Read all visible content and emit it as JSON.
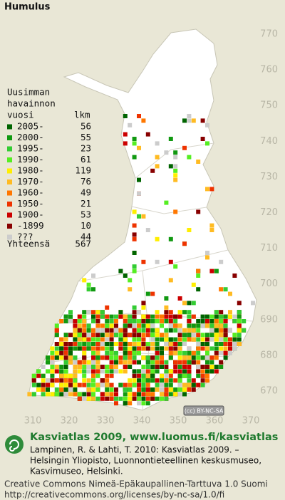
{
  "title": "Humulus",
  "legend": {
    "heading": [
      "Uusimman",
      "havainnon",
      "vuosi"
    ],
    "count_heading": "lkm",
    "items": [
      {
        "label": "2005-",
        "count": 56,
        "color": "#006400"
      },
      {
        "label": "2000-",
        "count": 55,
        "color": "#119911"
      },
      {
        "label": "1995-",
        "count": 23,
        "color": "#33cc33"
      },
      {
        "label": "1990-",
        "count": 61,
        "color": "#55ee22"
      },
      {
        "label": "1980-",
        "count": 119,
        "color": "#ffee00"
      },
      {
        "label": "1970-",
        "count": 76,
        "color": "#ffbb22"
      },
      {
        "label": "1960-",
        "count": 49,
        "color": "#ff7700"
      },
      {
        "label": "1950-",
        "count": 21,
        "color": "#ee3300"
      },
      {
        "label": "1900-",
        "count": 53,
        "color": "#cc0000"
      },
      {
        "label": "-1899",
        "count": 10,
        "color": "#880000"
      },
      {
        "label": "???",
        "count": 44,
        "color": "#cccccc"
      }
    ],
    "total": {
      "label": "Yhteensä",
      "count": 567
    }
  },
  "grid": {
    "north": [
      770,
      760,
      750,
      740,
      730,
      720,
      710,
      700,
      690,
      680,
      670
    ],
    "east": [
      310,
      320,
      330,
      340,
      350,
      360,
      370
    ]
  },
  "license_badge": "(cc) BY-NC-SA",
  "footer": {
    "site": "Kasviatlas 2009, www.luomus.fi/kasviatlas",
    "citation": [
      "Lampinen, R. & Lahti, T. 2010: Kasviatlas 2009. –",
      "Helsingin Yliopisto, Luonnontieteellinen keskusmuseo,",
      "Kasvimuseo, Helsinki."
    ],
    "license": [
      "Creative Commons Nimeä-Epäkaupallinen-Tarttuva 1.0 Suomi",
      "http://creativecommons.org/licenses/by-nc-sa/1.0/fi"
    ]
  }
}
